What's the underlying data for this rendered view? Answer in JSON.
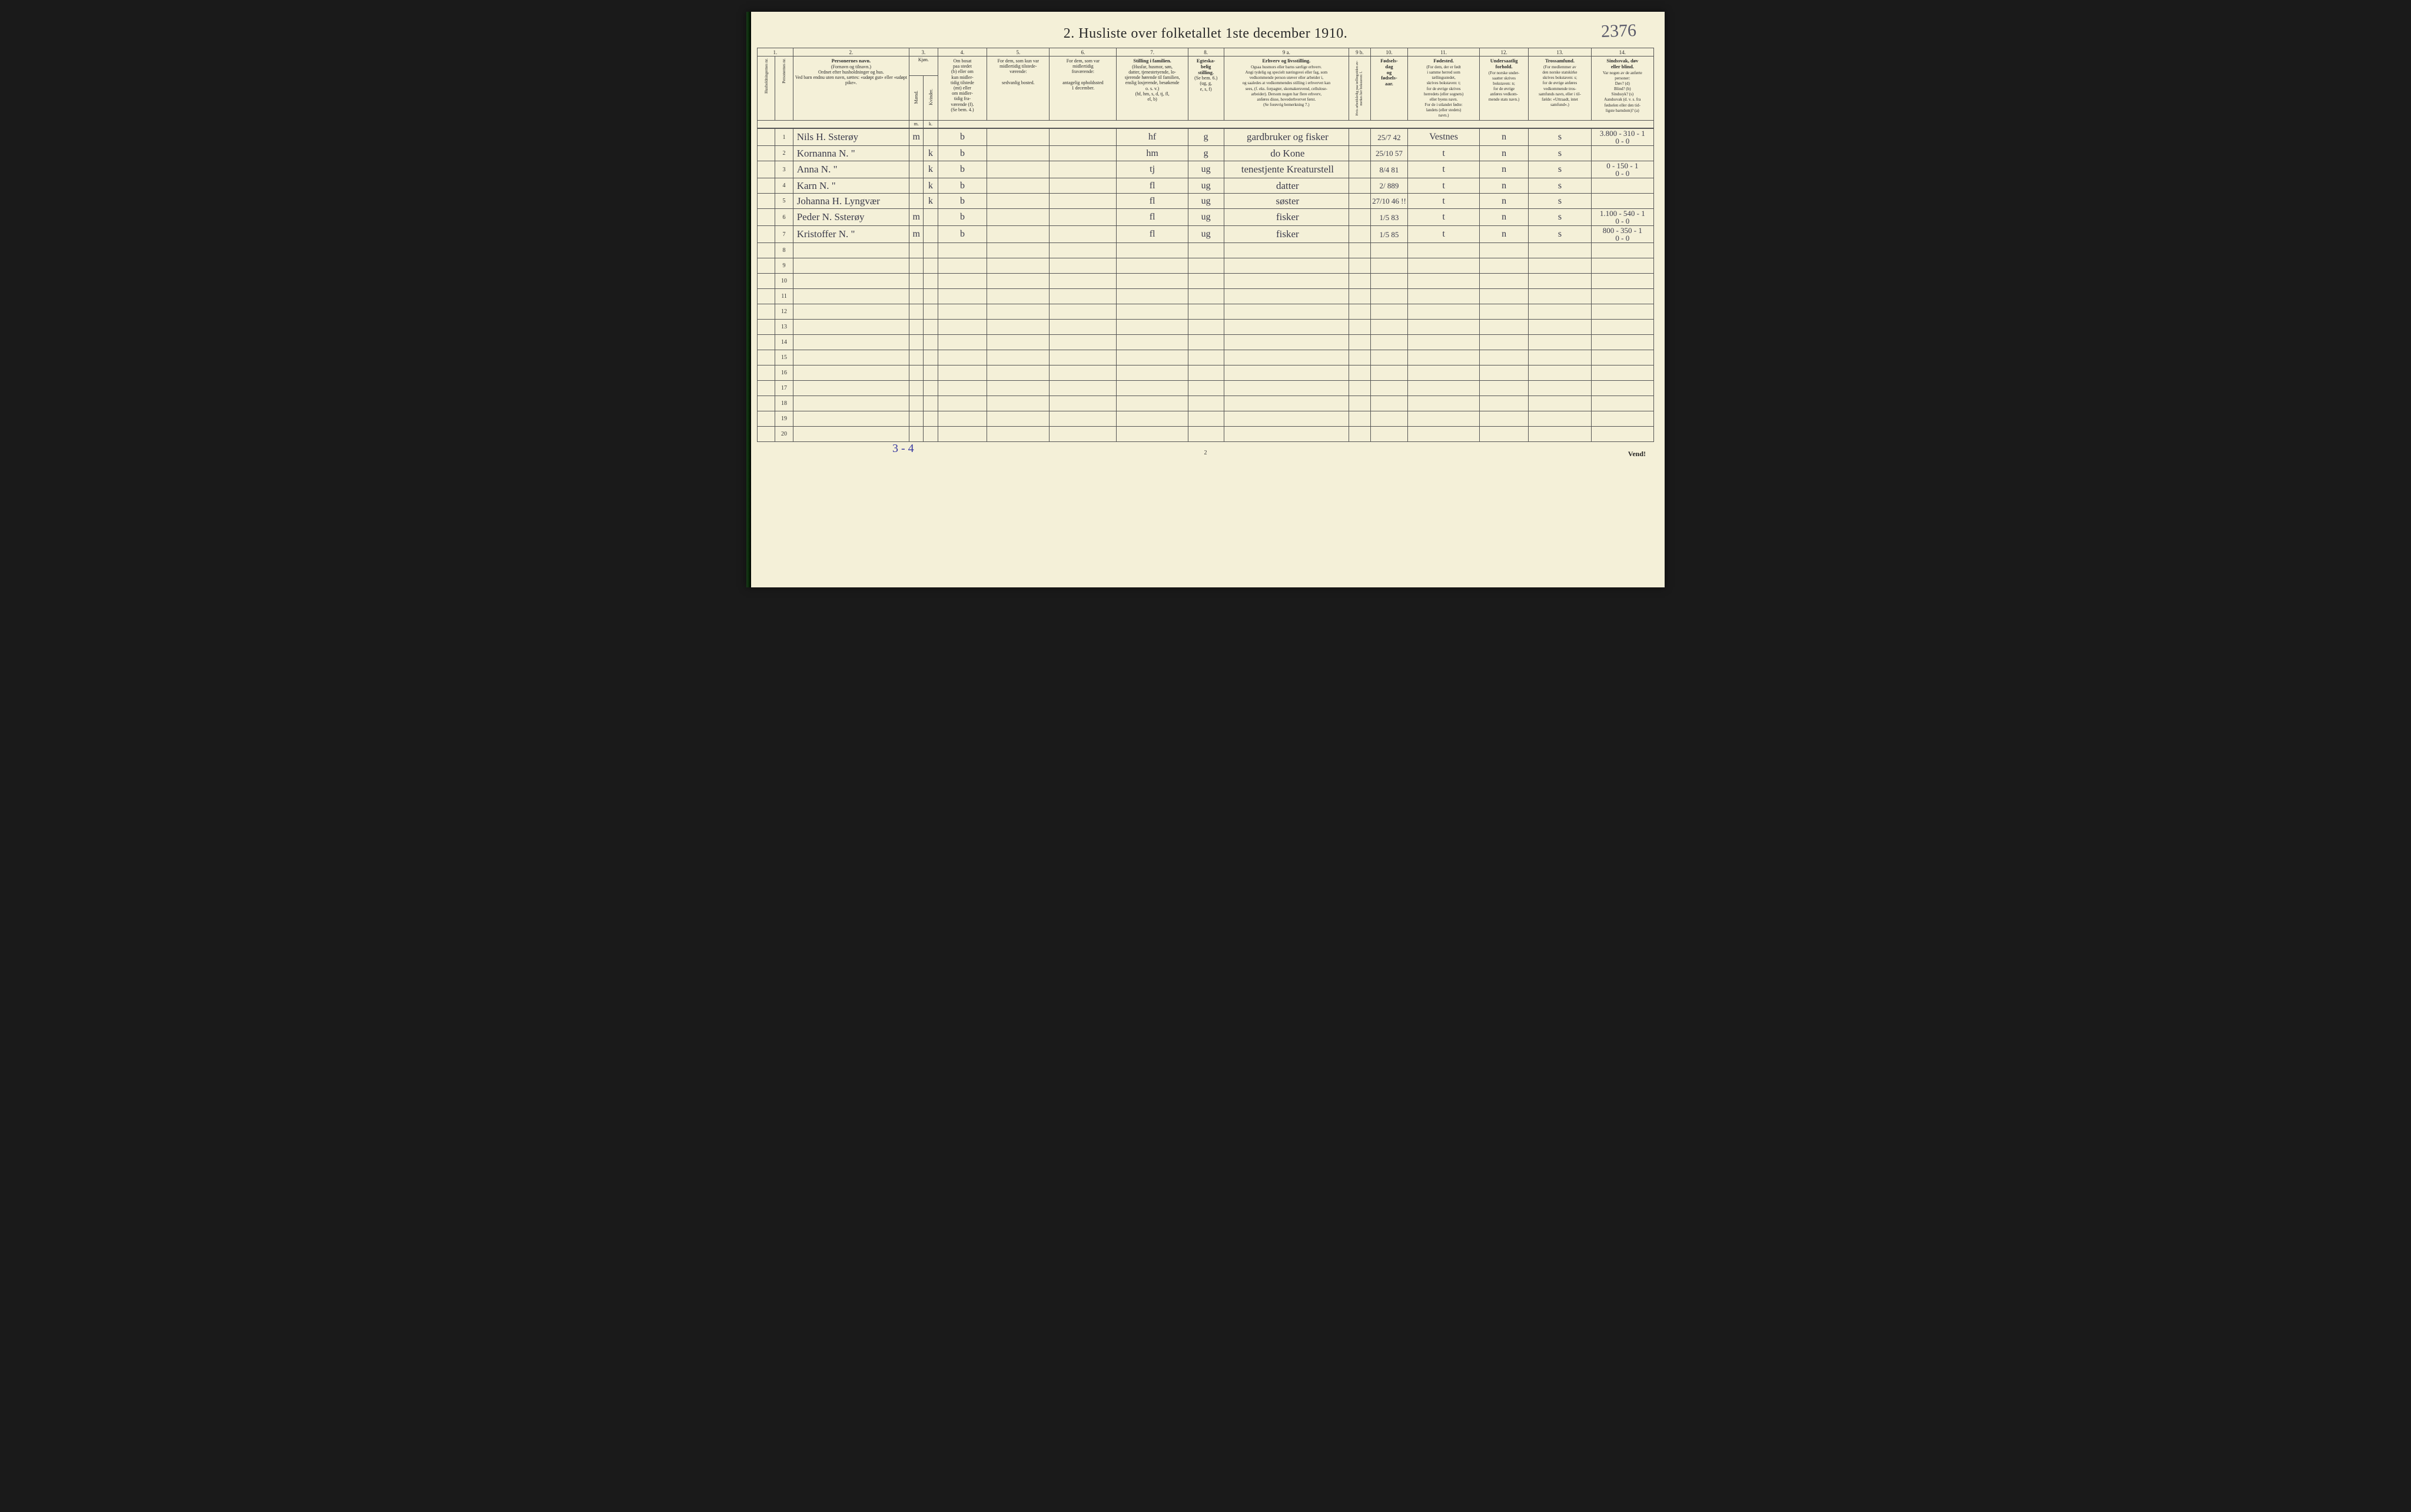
{
  "colors": {
    "paper": "#f4f0d8",
    "ink_print": "#2a2a2a",
    "ink_hand": "#3a3a4a",
    "ink_hand_blue": "#3a3aa0",
    "border": "#555555",
    "spine": "#0a2a0a",
    "background": "#1a1a1a"
  },
  "typography": {
    "title_fontsize_pt": 18,
    "header_fontsize_pt": 6,
    "handwriting_fontsize_pt": 13,
    "font_family_print": "Georgia, Times New Roman, serif",
    "font_family_hand": "Brush Script MT, cursive"
  },
  "title": "2.  Husliste over folketallet 1ste december 1910.",
  "handnote_topright": "2376",
  "column_numbers": [
    "1.",
    "",
    "2.",
    "3.",
    "",
    "4.",
    "5.",
    "6.",
    "7.",
    "8.",
    "9 a.",
    "9 b.",
    "10.",
    "11.",
    "12.",
    "13.",
    "14."
  ],
  "headers": {
    "col1": "Husholdningernes nr.",
    "col2": "Personernes nr.",
    "col3": {
      "bold": "Personernes navn.",
      "rest": "(Fornavn og tilnavn.)\nOrdnet efter husholdninger og hus.\nVed barn endnu uten navn, sættes: «udøpt gut» eller «udøpt pike»."
    },
    "col4_group": "Kjøn.",
    "col4a": "Mænd.",
    "col4b": "Kvinder.",
    "col4a_sub": "m.",
    "col4b_sub": "k.",
    "col5": {
      "bold": "",
      "rest": "Om bosat\npaa stedet\n(b) eller om\nkun midler-\ntidig tilstede\n(mt) eller\nom midler-\ntidig fra-\nværende (f).\n(Se bem. 4.)"
    },
    "col6": {
      "bold": "",
      "rest": "For dem, som kun var\nmidlertidig tilstede-\nværende:\n\nsedvanlig bosted."
    },
    "col7": {
      "bold": "",
      "rest": "For dem, som var\nmidlertidig\nfraværende:\n\nantagelig opholdssted\n1 december."
    },
    "col8": {
      "bold": "Stilling i familien.",
      "rest": "(Husfar, husmor, søn,\ndatter, tjenestetyende, lo-\nsjerende hørende til familien,\nenslig losjerende, besøkende\no. s. v.)\n(hf, hm, s, d, tj, fl,\nel, b)"
    },
    "col9": {
      "bold": "Egteska-\nbelig\nstilling.",
      "rest": "(Se bem. 6.)\n(ug, g,\ne, s, f)"
    },
    "col10": {
      "bold": "Erhverv og livsstilling.",
      "rest": "Ogsaa husmors eller barns særlige erhverv.\nAngi tydelig og specielt næringsvei eller fag, som\nvedkommende person utøver eller arbeider i,\nog saaledes at vedkommendes stilling i erhvervet kan\nsees, (f. eks. forpagter, skomakersvend, cellulose-\narbeider). Dersom nogen har flere erhverv,\nanføres disse, hovederhvervet først.\n(Se forøvrig bemerkning 7.)"
    },
    "col11": "Hvis arbeidsledig paa tællingstiden av-merkes her bokstaven: l.",
    "col12": {
      "bold": "Fødsels-\ndag\nog\nfødsels-\naar.",
      "rest": ""
    },
    "col13": {
      "bold": "Fødested.",
      "rest": "(For dem, der er født\ni samme herred som\ntællingsstedet,\nskrives bokstaven: t;\nfor de øvrige skrives\nherredets (eller sognets)\neller byens navn.\nFor de i utlandet fødte:\nlandets (eller stedets)\nnavn.)"
    },
    "col14": {
      "bold": "Undersaatlig\nforhold.",
      "rest": "(For norske under-\nsaatter skrives\nbokstaven: n;\nfor de øvrige\nanføres vedkom-\nmende stats navn.)"
    },
    "col15": {
      "bold": "Trossamfund.",
      "rest": "(For medlemmer av\nden norske statskirke\nskrives bokstaven: s;\nfor de øvrige anføres\nvedkommende tros-\nsamfunds navn, eller i til-\nfælde: «Uttraadt, intet\nsamfund».)"
    },
    "col16": {
      "bold": "Sindssvak, døv\neller blind.",
      "rest": "Var nogen av de anførte\npersoner:\nDøv?        (d)\nBlind?      (b)\nSindssyk?  (s)\nAandssvak (d. v. s. fra\nfødselen eller den tid-\nligste barndom)? (a)"
    }
  },
  "rows": [
    {
      "n": "1",
      "name": "Nils H. Ssterøy",
      "sex_m": "m",
      "sex_k": "",
      "res": "b",
      "c6": "",
      "c7": "",
      "fam": "hf",
      "mar": "g",
      "occ": "gardbruker og fisker",
      "led": "",
      "birth": "25/7 42",
      "born": "Vestnes",
      "nat": "n",
      "rel": "s",
      "dis": "3.800 - 310 - 1\n0 - 0"
    },
    {
      "n": "2",
      "name": "Kornanna N.  \"",
      "sex_m": "",
      "sex_k": "k",
      "res": "b",
      "c6": "",
      "c7": "",
      "fam": "hm",
      "mar": "g",
      "occ": "do   Kone",
      "led": "",
      "birth": "25/10 57",
      "born": "t",
      "nat": "n",
      "rel": "s",
      "dis": ""
    },
    {
      "n": "3",
      "name": "Anna N.      \"",
      "sex_m": "",
      "sex_k": "k",
      "res": "b",
      "c6": "",
      "c7": "",
      "fam": "tj",
      "mar": "ug",
      "occ": "tenestjente Kreaturstell",
      "led": "",
      "birth": "8/4 81",
      "born": "t",
      "nat": "n",
      "rel": "s",
      "dis": "0 - 150 - 1\n0 - 0"
    },
    {
      "n": "4",
      "name": "Karn N.      \"",
      "sex_m": "",
      "sex_k": "k",
      "res": "b",
      "c6": "",
      "c7": "",
      "fam": "fl",
      "mar": "ug",
      "occ": "datter",
      "led": "",
      "birth": "2/ 889",
      "born": "t",
      "nat": "n",
      "rel": "s",
      "dis": ""
    },
    {
      "n": "5",
      "name": "Johanna H. Lyngvær",
      "sex_m": "",
      "sex_k": "k",
      "res": "b",
      "c6": "",
      "c7": "",
      "fam": "fl",
      "mar": "ug",
      "occ": "søster",
      "led": "",
      "birth": "27/10 46 !!",
      "born": "t",
      "nat": "n",
      "rel": "s",
      "dis": ""
    },
    {
      "n": "6",
      "name": "Peder N. Ssterøy",
      "sex_m": "m",
      "sex_k": "",
      "res": "b",
      "c6": "",
      "c7": "",
      "fam": "fl",
      "mar": "ug",
      "occ": "fisker",
      "led": "",
      "birth": "1/5 83",
      "born": "t",
      "nat": "n",
      "rel": "s",
      "dis": "1.100 - 540 - 1\n0 - 0"
    },
    {
      "n": "7",
      "name": "Kristoffer N.  \"",
      "sex_m": "m",
      "sex_k": "",
      "res": "b",
      "c6": "",
      "c7": "",
      "fam": "fl",
      "mar": "ug",
      "occ": "fisker",
      "led": "",
      "birth": "1/5 85",
      "born": "t",
      "nat": "n",
      "rel": "s",
      "dis": "800 - 350 - 1\n0 - 0"
    },
    {
      "n": "8"
    },
    {
      "n": "9"
    },
    {
      "n": "10"
    },
    {
      "n": "11"
    },
    {
      "n": "12"
    },
    {
      "n": "13"
    },
    {
      "n": "14"
    },
    {
      "n": "15"
    },
    {
      "n": "16"
    },
    {
      "n": "17"
    },
    {
      "n": "18"
    },
    {
      "n": "19"
    },
    {
      "n": "20"
    }
  ],
  "footer": {
    "hand_note": "3 - 4",
    "page_num": "2",
    "vend": "Vend!"
  }
}
